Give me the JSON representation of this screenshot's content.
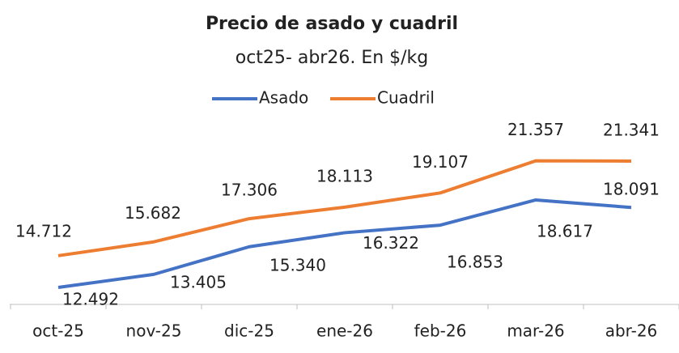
{
  "chart_data": {
    "type": "line",
    "title": "Precio de asado y cuadril",
    "subtitle": "oct25- abr26. En $/kg",
    "categories": [
      "oct-25",
      "nov-25",
      "dic-25",
      "ene-26",
      "feb-26",
      "mar-26",
      "abr-26"
    ],
    "series": [
      {
        "name": "Asado",
        "color": "#4472c4",
        "values": [
          12492,
          13405,
          15340,
          16322,
          16853,
          18617,
          18091
        ],
        "value_labels": [
          "12.492",
          "13.405",
          "15.340",
          "16.322",
          "16.853",
          "18.617",
          "18.091"
        ]
      },
      {
        "name": "Cuadril",
        "color": "#ed7d31",
        "values": [
          14712,
          15682,
          17306,
          18113,
          19107,
          21357,
          21341
        ],
        "value_labels": [
          "14.712",
          "15.682",
          "17.306",
          "18.113",
          "19.107",
          "21.357",
          "21.341"
        ]
      }
    ],
    "ylim": [
      11300,
      22500
    ]
  }
}
